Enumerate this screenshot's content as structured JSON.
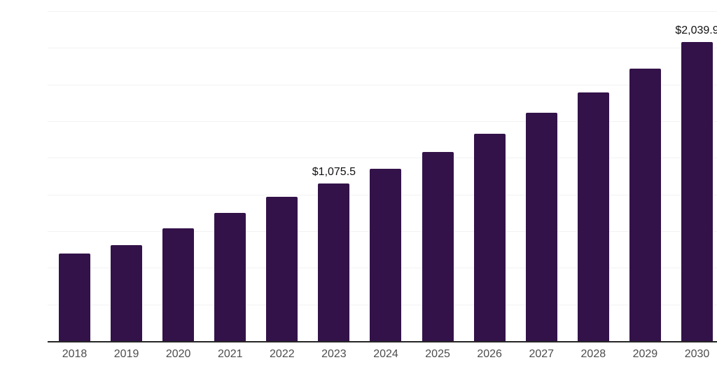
{
  "chart_data": {
    "type": "bar",
    "title": "",
    "xlabel": "",
    "ylabel": "",
    "categories": [
      "2018",
      "2019",
      "2020",
      "2021",
      "2022",
      "2023",
      "2024",
      "2025",
      "2026",
      "2027",
      "2028",
      "2029",
      "2030"
    ],
    "values": [
      597,
      654,
      769,
      874,
      984,
      1075.5,
      1175,
      1290,
      1414,
      1557,
      1696,
      1858,
      2039.9
    ],
    "value_labels": {
      "2023": "$1,075.5",
      "2030": "$2,039.9"
    },
    "ylim": [
      0,
      2250
    ],
    "gridline_step": 250,
    "grid": true,
    "legend": false,
    "colors": {
      "bar": "#331249",
      "gridline": "#f2f2f2",
      "axis_line": "#262626",
      "tick_label": "#4d4d4d",
      "value_label": "#111111",
      "background": "#ffffff"
    }
  }
}
